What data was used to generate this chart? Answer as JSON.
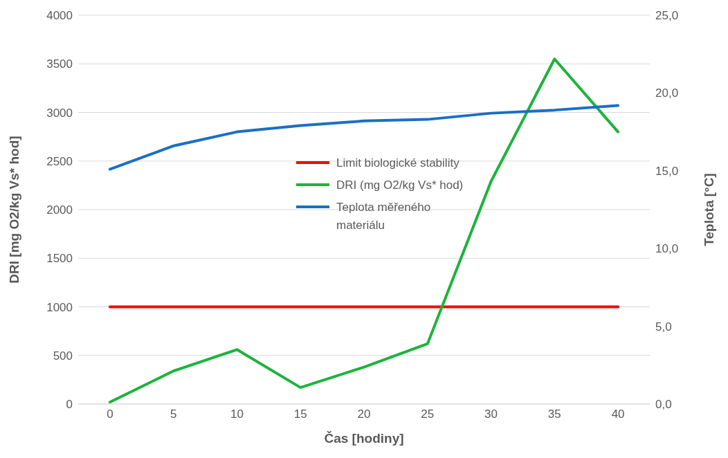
{
  "chart_data": {
    "type": "line",
    "xlabel": "Čas [hodiny]",
    "ylabel": "DRI [mg O2/kg Vs* hod]",
    "y2label": "Teplota [°C]",
    "x": [
      0,
      5,
      10,
      15,
      20,
      25,
      30,
      35,
      40
    ],
    "series": [
      {
        "name": "Limit biologické stability",
        "color": "#ff0000",
        "values": [
          1000,
          1000,
          1000,
          1000,
          1000,
          1000,
          1000,
          1000,
          1000
        ]
      },
      {
        "name": "DRI (mg O2/kg Vs* hod)",
        "color": "#1cb33c",
        "values": [
          20,
          340,
          560,
          170,
          380,
          620,
          2290,
          3550,
          2800
        ]
      },
      {
        "name": "Teplota měřeného materiálu",
        "color": "#1a6fc4",
        "axis": "y2",
        "values": [
          15.1,
          16.6,
          17.5,
          17.9,
          18.2,
          18.3,
          18.7,
          18.9,
          19.2
        ]
      }
    ],
    "xlim": [
      -2.5,
      42.5
    ],
    "xticks": [
      0,
      5,
      10,
      15,
      20,
      25,
      30,
      35,
      40
    ],
    "ylim": [
      0,
      4000
    ],
    "yticks": [
      0,
      500,
      1000,
      1500,
      2000,
      2500,
      3000,
      3500,
      4000
    ],
    "y2lim": [
      0,
      25
    ],
    "y2ticks": [
      {
        "value": 0,
        "label": "0,0"
      },
      {
        "value": 5,
        "label": "5,0"
      },
      {
        "value": 10,
        "label": "10,0"
      },
      {
        "value": 15,
        "label": "15,0"
      },
      {
        "value": 20,
        "label": "20,0"
      },
      {
        "value": 25,
        "label": "25,0"
      }
    ],
    "grid": "y",
    "legend": "center",
    "marker": "none",
    "line_style": "solid"
  }
}
